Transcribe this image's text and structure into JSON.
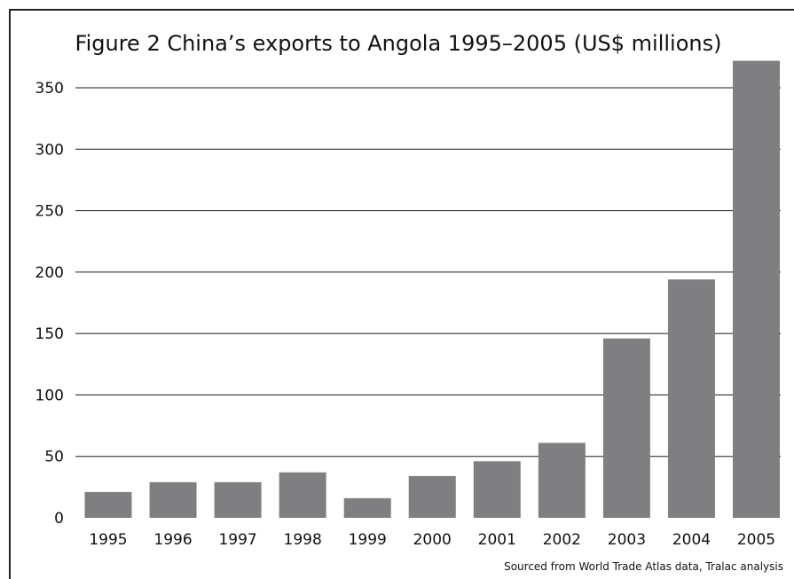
{
  "chart_data": {
    "type": "bar",
    "title": "Figure 2 China’s exports to Angola 1995–2005 (US$ millions)",
    "source": "Sourced from World Trade Atlas data, Tralac analysis",
    "categories": [
      "1995",
      "1996",
      "1997",
      "1998",
      "1999",
      "2000",
      "2001",
      "2002",
      "2003",
      "2004",
      "2005"
    ],
    "values": [
      21,
      29,
      29,
      37,
      16,
      34,
      46,
      61,
      146,
      194,
      372
    ],
    "ylim": [
      0,
      350
    ],
    "yticks": [
      0,
      50,
      100,
      150,
      200,
      250,
      300,
      350
    ],
    "xlabel": "",
    "ylabel": "",
    "grid": true,
    "colors": {
      "bar": "#7f7f81",
      "grid": "#1a1a1a",
      "text": "#111111"
    }
  }
}
